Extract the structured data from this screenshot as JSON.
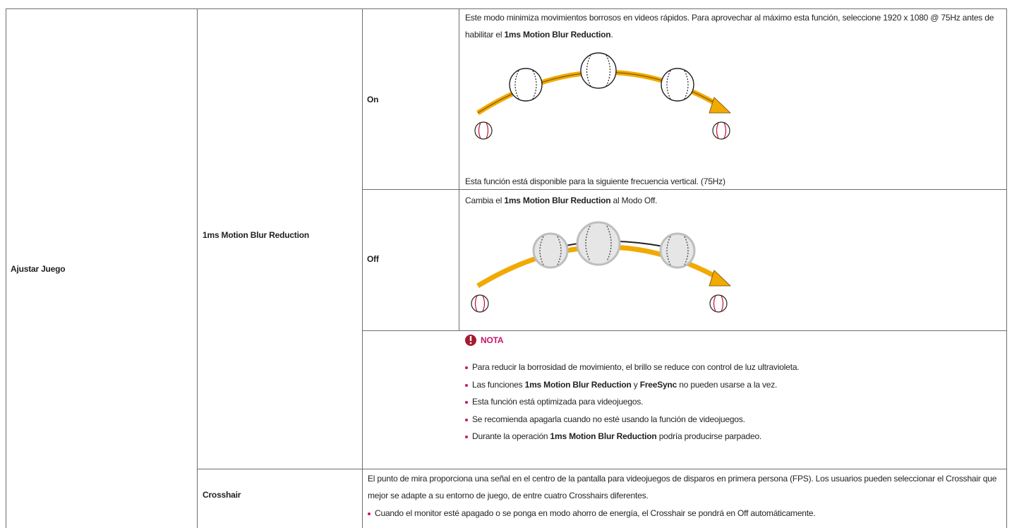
{
  "menu": "Ajustar Juego",
  "feature": "1ms Motion Blur Reduction",
  "options": [
    {
      "label": "On",
      "description": [
        {
          "text": "Este modo minimiza movimientos borrosos en videos rápidos. Para aprovechar al máximo esta función, seleccione 1920 x 1080 @ 75Hz antes de habilitar el ",
          "bold": false
        },
        {
          "text": "1ms Motion Blur Reduction",
          "bold": true
        },
        {
          "text": ".",
          "bold": false
        }
      ],
      "footnote": "Esta función está disponible para la siguiente frecuencia vertical. (75Hz)"
    },
    {
      "label": "Off",
      "description": [
        {
          "text": "Cambia el ",
          "bold": false
        },
        {
          "text": "1ms Motion Blur Reduction",
          "bold": true
        },
        {
          "text": " al Modo Off.",
          "bold": false
        }
      ]
    }
  ],
  "note": {
    "title": "NOTA",
    "items": [
      [
        {
          "text": "Para reducir la borrosidad de movimiento, el brillo se reduce con control de luz ultravioleta.",
          "bold": false
        }
      ],
      [
        {
          "text": "Las funciones ",
          "bold": false
        },
        {
          "text": "1ms Motion Blur Reduction",
          "bold": true
        },
        {
          "text": " y ",
          "bold": false
        },
        {
          "text": "FreeSync",
          "bold": true
        },
        {
          "text": " no pueden usarse a la vez.",
          "bold": false
        }
      ],
      [
        {
          "text": "Esta función está optimizada para videojuegos.",
          "bold": false
        }
      ],
      [
        {
          "text": "Se recomienda apagarla cuando no esté usando la función de videojuegos.",
          "bold": false
        }
      ],
      [
        {
          "text": "Durante la operación ",
          "bold": false
        },
        {
          "text": "1ms Motion Blur Reduction",
          "bold": true
        },
        {
          "text": " podría producirse parpadeo.",
          "bold": false
        }
      ]
    ]
  },
  "crosshair": {
    "label": "Crosshair",
    "description": "El punto de mira proporciona una señal en el centro de la pantalla para videojuegos de disparos en primera persona (FPS). Los usuarios pueden seleccionar el Crosshair que mejor se adapte a su entorno de juego, de entre cuatro Crosshairs diferentes.",
    "items": [
      "Cuando el monitor esté apagado o se ponga en modo ahorro de energía, el Crosshair se pondrá en Off automáticamente."
    ]
  }
}
